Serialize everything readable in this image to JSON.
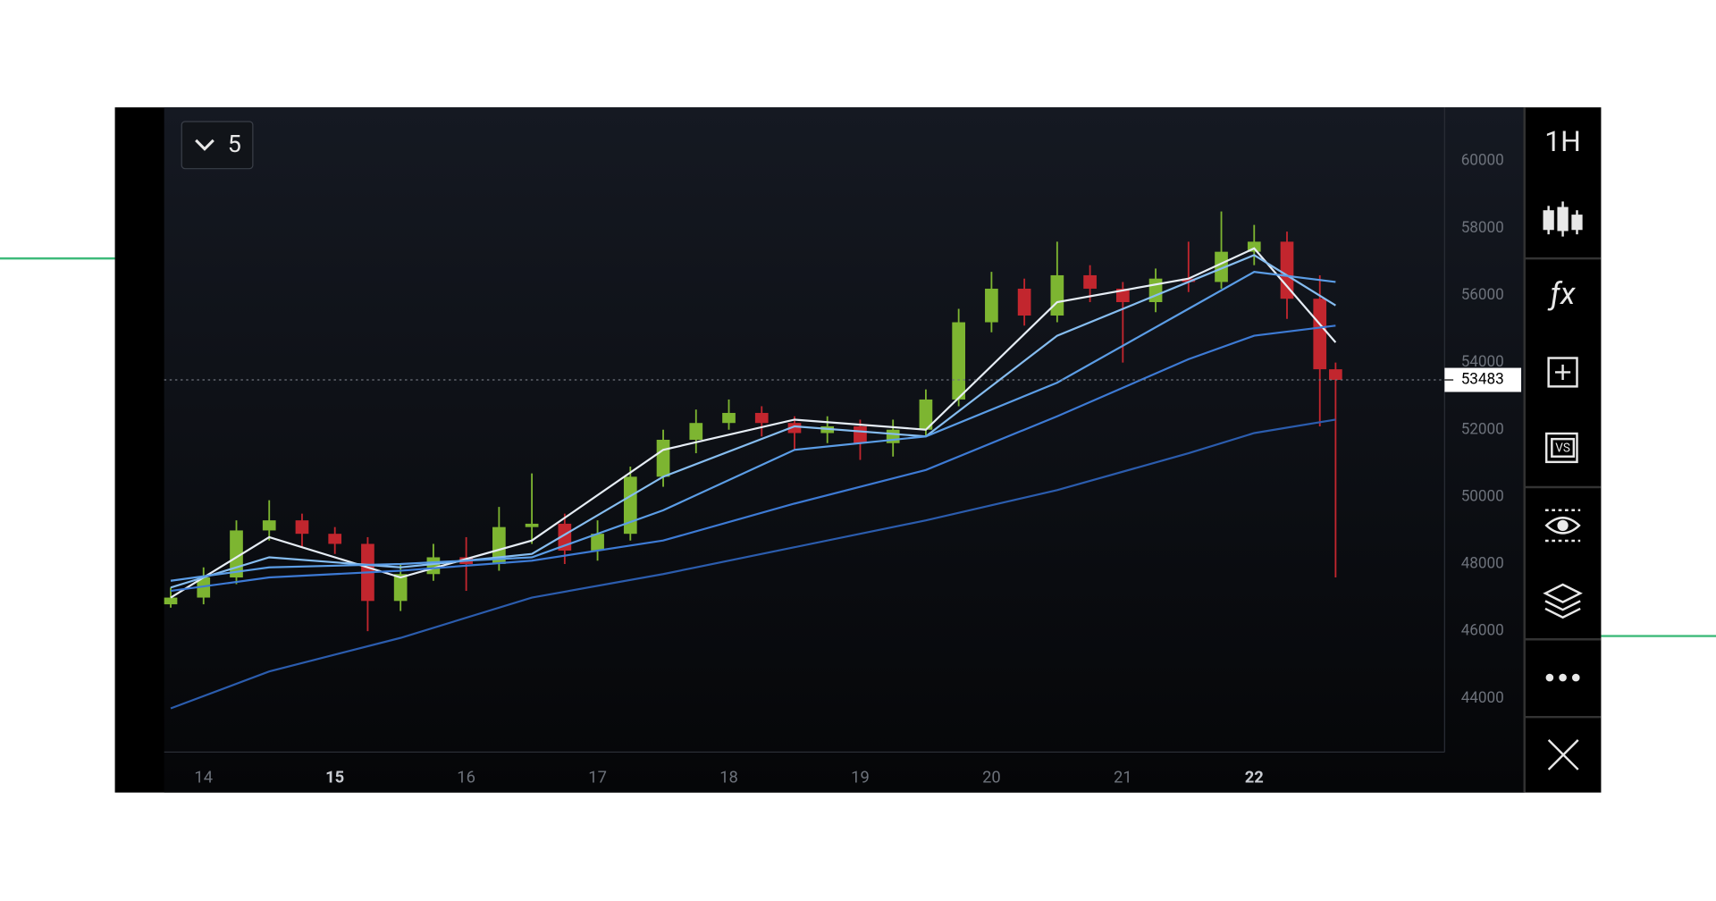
{
  "chart_data": {
    "type": "candlestick",
    "interval": "1H",
    "indicator_count": "5",
    "xlim": [
      13.7,
      23.45
    ],
    "xticks": [
      14,
      15,
      16,
      17,
      18,
      19,
      20,
      21,
      22
    ],
    "bold_xticks": [
      15,
      22
    ],
    "ylim": [
      42400,
      61600
    ],
    "yticks": [
      44000,
      46000,
      48000,
      50000,
      52000,
      54000,
      56000,
      58000,
      60000
    ],
    "last_price": 53483,
    "up_color": "#7db531",
    "down_color": "#c2262e",
    "x": [
      13.75,
      14,
      14.25,
      14.5,
      14.75,
      15,
      15.25,
      15.5,
      15.75,
      16,
      16.25,
      16.5,
      16.75,
      17,
      17.25,
      17.5,
      17.75,
      18,
      18.25,
      18.5,
      18.75,
      19,
      19.25,
      19.5,
      19.75,
      20,
      20.25,
      20.5,
      20.75,
      21,
      21.25,
      21.5,
      21.75,
      22,
      22.25,
      22.5,
      22.62
    ],
    "open": [
      46800,
      47000,
      47600,
      49000,
      49300,
      48900,
      48600,
      46900,
      47700,
      48200,
      48000,
      49100,
      49200,
      48400,
      48900,
      50600,
      51700,
      52200,
      52500,
      52200,
      51900,
      52100,
      51600,
      52000,
      52900,
      55200,
      56200,
      55400,
      56600,
      56200,
      55800,
      56500,
      56400,
      57300,
      57600,
      55900,
      53800
    ],
    "high": [
      47300,
      47900,
      49300,
      49900,
      49500,
      49100,
      48800,
      48000,
      48600,
      48800,
      49700,
      50700,
      49500,
      49300,
      50900,
      52000,
      52600,
      52900,
      52700,
      52400,
      52400,
      52300,
      52300,
      53200,
      55600,
      56700,
      56500,
      57600,
      56900,
      56400,
      56800,
      57600,
      58500,
      58100,
      57900,
      56600,
      54000
    ],
    "low": [
      46700,
      46800,
      47400,
      48700,
      48500,
      48300,
      46000,
      46600,
      47500,
      47200,
      47800,
      48600,
      48000,
      48100,
      48700,
      50300,
      51300,
      52000,
      51800,
      51400,
      51600,
      51100,
      51200,
      51800,
      52700,
      54900,
      55100,
      55200,
      55800,
      54000,
      55500,
      56100,
      56200,
      56900,
      55300,
      52100,
      47600
    ],
    "close": [
      47000,
      47600,
      49000,
      49300,
      48900,
      48600,
      46900,
      47700,
      48200,
      48000,
      49100,
      49200,
      48400,
      48900,
      50600,
      51700,
      52200,
      52500,
      52200,
      51900,
      52100,
      51600,
      52000,
      52900,
      55200,
      56200,
      55400,
      56600,
      56200,
      55800,
      56500,
      56400,
      57300,
      57600,
      55900,
      53800,
      53483
    ],
    "moving_averages": [
      {
        "color": "#e6edf5",
        "x": [
          13.75,
          14.5,
          15.5,
          16.5,
          17.5,
          18.5,
          19.5,
          20.5,
          21.5,
          22,
          22.62
        ],
        "values": [
          47000,
          48800,
          47600,
          48700,
          51400,
          52300,
          52000,
          55800,
          56500,
          57400,
          54600
        ]
      },
      {
        "color": "#86bdf0",
        "x": [
          13.75,
          14.5,
          15.5,
          16.5,
          17.5,
          18.5,
          19.5,
          20.5,
          21.5,
          22,
          22.62
        ],
        "values": [
          47300,
          48200,
          47900,
          48300,
          50600,
          52100,
          51800,
          54800,
          56400,
          57200,
          55700
        ]
      },
      {
        "color": "#5b9de6",
        "x": [
          13.75,
          14.5,
          15.5,
          16.5,
          17.5,
          18.5,
          19.5,
          20.5,
          21.5,
          22,
          22.62
        ],
        "values": [
          47500,
          47900,
          48000,
          48200,
          49600,
          51400,
          51800,
          53400,
          55600,
          56700,
          56400
        ]
      },
      {
        "color": "#3d7ad4",
        "x": [
          13.75,
          14.5,
          15.5,
          16.5,
          17.5,
          18.5,
          19.5,
          20.5,
          21.5,
          22,
          22.62
        ],
        "values": [
          47200,
          47600,
          47800,
          48100,
          48700,
          49800,
          50800,
          52400,
          54100,
          54800,
          55100
        ]
      },
      {
        "color": "#2b5cad",
        "x": [
          13.75,
          14.5,
          15.5,
          16.5,
          17.5,
          18.5,
          19.5,
          20.5,
          21.5,
          22,
          22.62
        ],
        "values": [
          43700,
          44800,
          45800,
          47000,
          47700,
          48500,
          49300,
          50200,
          51300,
          51900,
          52300
        ]
      }
    ]
  }
}
